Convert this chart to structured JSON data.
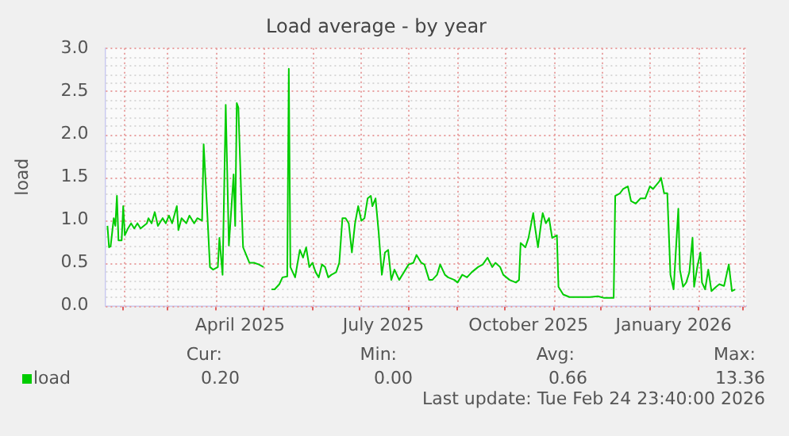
{
  "chart_data": {
    "type": "line",
    "title": "Load average - by year",
    "ylabel": "load",
    "x": [
      "2025-01-22",
      "2025-01-23",
      "2025-01-24",
      "2025-01-26",
      "2025-01-27",
      "2025-01-28",
      "2025-01-29",
      "2025-01-31",
      "2025-02-01",
      "2025-02-02",
      "2025-02-04",
      "2025-02-06",
      "2025-02-08",
      "2025-02-10",
      "2025-02-12",
      "2025-02-14",
      "2025-02-16",
      "2025-02-17",
      "2025-02-19",
      "2025-02-21",
      "2025-02-23",
      "2025-02-26",
      "2025-02-28",
      "2025-03-02",
      "2025-03-04",
      "2025-03-07",
      "2025-03-08",
      "2025-03-10",
      "2025-03-13",
      "2025-03-15",
      "2025-03-18",
      "2025-03-20",
      "2025-03-23",
      "2025-03-24",
      "2025-03-26",
      "2025-03-28",
      "2025-03-30",
      "2025-04-02",
      "2025-04-03",
      "2025-04-05",
      "2025-04-07",
      "2025-04-09",
      "2025-04-12",
      "2025-04-13",
      "2025-04-14",
      "2025-04-15",
      "2025-04-17",
      "2025-04-18",
      "2025-04-22",
      "2025-04-25",
      "2025-04-28",
      "2025-05-01",
      "2025-05-03",
      "2025-05-06",
      "2025-05-08",
      "2025-05-11",
      "2025-05-13",
      "2025-05-16",
      "2025-05-17",
      "2025-05-18",
      "2025-05-21",
      "2025-05-24",
      "2025-05-26",
      "2025-05-28",
      "2025-05-30",
      "2025-06-01",
      "2025-06-03",
      "2025-06-05",
      "2025-06-07",
      "2025-06-09",
      "2025-06-11",
      "2025-06-13",
      "2025-06-16",
      "2025-06-18",
      "2025-06-20",
      "2025-06-22",
      "2025-06-24",
      "2025-06-26",
      "2025-06-28",
      "2025-06-30",
      "2025-07-02",
      "2025-07-04",
      "2025-07-06",
      "2025-07-08",
      "2025-07-09",
      "2025-07-11",
      "2025-07-13",
      "2025-07-15",
      "2025-07-17",
      "2025-07-19",
      "2025-07-21",
      "2025-07-23",
      "2025-07-26",
      "2025-07-28",
      "2025-07-30",
      "2025-08-01",
      "2025-08-04",
      "2025-08-06",
      "2025-08-09",
      "2025-08-11",
      "2025-08-14",
      "2025-08-16",
      "2025-08-19",
      "2025-08-21",
      "2025-08-24",
      "2025-08-26",
      "2025-08-30",
      "2025-09-01",
      "2025-09-04",
      "2025-09-07",
      "2025-09-10",
      "2025-09-14",
      "2025-09-17",
      "2025-09-20",
      "2025-09-23",
      "2025-09-25",
      "2025-09-28",
      "2025-09-30",
      "2025-10-04",
      "2025-10-08",
      "2025-10-10",
      "2025-10-11",
      "2025-10-14",
      "2025-10-16",
      "2025-10-19",
      "2025-10-20",
      "2025-10-22",
      "2025-10-24",
      "2025-10-25",
      "2025-10-27",
      "2025-10-29",
      "2025-10-31",
      "2025-11-03",
      "2025-11-04",
      "2025-11-07",
      "2025-11-11",
      "2025-11-18",
      "2025-11-24",
      "2025-11-29",
      "2025-12-03",
      "2025-12-09",
      "2025-12-10",
      "2025-12-13",
      "2025-12-15",
      "2025-12-18",
      "2025-12-20",
      "2025-12-23",
      "2025-12-26",
      "2025-12-29",
      "2026-01-01",
      "2026-01-03",
      "2026-01-07",
      "2026-01-08",
      "2026-01-10",
      "2026-01-12",
      "2026-01-14",
      "2026-01-16",
      "2026-01-17",
      "2026-01-19",
      "2026-01-20",
      "2026-01-22",
      "2026-01-24",
      "2026-01-26",
      "2026-01-28",
      "2026-01-29",
      "2026-01-31",
      "2026-02-02",
      "2026-02-03",
      "2026-02-05",
      "2026-02-07",
      "2026-02-09",
      "2026-02-12",
      "2026-02-14",
      "2026-02-17",
      "2026-02-20",
      "2026-02-22",
      "2026-02-24"
    ],
    "series": [
      {
        "name": "load",
        "color": "#00cc00",
        "values": [
          0.93,
          0.68,
          0.69,
          1.02,
          0.93,
          1.28,
          0.76,
          0.76,
          1.16,
          0.82,
          0.9,
          0.96,
          0.9,
          0.96,
          0.9,
          0.93,
          0.96,
          1.02,
          0.96,
          1.09,
          0.93,
          1.02,
          0.96,
          1.05,
          0.96,
          1.16,
          0.88,
          1.02,
          0.96,
          1.05,
          0.96,
          1.02,
          0.99,
          1.88,
          1.19,
          0.45,
          0.42,
          0.45,
          0.79,
          0.36,
          2.34,
          0.7,
          1.53,
          0.93,
          2.36,
          2.31,
          1.19,
          0.68,
          0.5,
          0.5,
          0.48,
          0.45,
          null,
          0.19,
          0.19,
          0.25,
          0.33,
          0.34,
          2.76,
          0.45,
          0.33,
          0.65,
          0.56,
          0.68,
          0.45,
          0.5,
          0.39,
          0.33,
          0.48,
          0.45,
          0.33,
          0.36,
          0.39,
          0.5,
          1.02,
          1.02,
          0.96,
          0.62,
          0.96,
          1.16,
          0.99,
          1.02,
          1.25,
          1.28,
          1.16,
          1.25,
          0.85,
          0.36,
          0.62,
          0.65,
          0.3,
          0.42,
          0.3,
          0.36,
          0.42,
          0.48,
          0.5,
          0.59,
          0.5,
          0.48,
          0.3,
          0.3,
          0.36,
          0.48,
          0.36,
          0.33,
          0.3,
          0.27,
          0.36,
          0.33,
          0.39,
          0.45,
          0.48,
          0.56,
          0.45,
          0.5,
          0.45,
          0.36,
          0.3,
          0.27,
          0.3,
          0.73,
          0.68,
          0.79,
          1.08,
          0.93,
          0.68,
          0.96,
          1.08,
          0.96,
          1.02,
          0.79,
          0.82,
          0.22,
          0.13,
          0.1,
          0.1,
          0.1,
          0.11,
          0.09,
          0.09,
          1.28,
          1.31,
          1.36,
          1.39,
          1.22,
          1.19,
          1.25,
          1.25,
          1.39,
          1.36,
          1.45,
          1.49,
          1.31,
          1.31,
          0.36,
          0.19,
          0.5,
          1.13,
          0.42,
          0.22,
          0.27,
          0.39,
          0.79,
          0.22,
          0.45,
          0.62,
          0.27,
          0.19,
          0.42,
          0.17,
          0.22,
          0.25,
          0.23,
          0.48,
          0.17,
          0.19
        ]
      }
    ],
    "xlim": [
      "2025-01-21",
      "2026-03-03"
    ],
    "xticks": [
      {
        "value": "2025-02-01",
        "label": null
      },
      {
        "value": "2025-03-01",
        "label": null
      },
      {
        "value": "2025-04-01",
        "label": null
      },
      {
        "value": "2025-04-16",
        "label": "April 2025"
      },
      {
        "value": "2025-05-01",
        "label": null
      },
      {
        "value": "2025-06-01",
        "label": null
      },
      {
        "value": "2025-07-01",
        "label": null
      },
      {
        "value": "2025-07-16",
        "label": "July 2025"
      },
      {
        "value": "2025-08-01",
        "label": null
      },
      {
        "value": "2025-09-01",
        "label": null
      },
      {
        "value": "2025-10-01",
        "label": null
      },
      {
        "value": "2025-10-16",
        "label": "October 2025"
      },
      {
        "value": "2025-11-01",
        "label": null
      },
      {
        "value": "2025-12-01",
        "label": null
      },
      {
        "value": "2026-01-01",
        "label": null
      },
      {
        "value": "2026-01-16",
        "label": "January 2026"
      },
      {
        "value": "2026-02-01",
        "label": null
      },
      {
        "value": "2026-03-01",
        "label": null
      }
    ],
    "ylim": [
      0,
      3
    ],
    "yticks": [
      {
        "value": 0,
        "label": "0.0"
      },
      {
        "value": 0.5,
        "label": "0.5"
      },
      {
        "value": 1,
        "label": "1.0"
      },
      {
        "value": 1.5,
        "label": "1.5"
      },
      {
        "value": 2,
        "label": "2.0"
      },
      {
        "value": 2.5,
        "label": "2.5"
      },
      {
        "value": 3,
        "label": "3.0"
      }
    ],
    "grid": true,
    "legend": "bottom left",
    "marker": "none",
    "line_style": "solid",
    "annotations": [
      "Cur:",
      "Min:",
      "Avg:",
      "Max:",
      "0.20",
      "0.00",
      "0.66",
      "13.36",
      "Last update: Tue Feb 24 23:40:00 2026"
    ]
  }
}
